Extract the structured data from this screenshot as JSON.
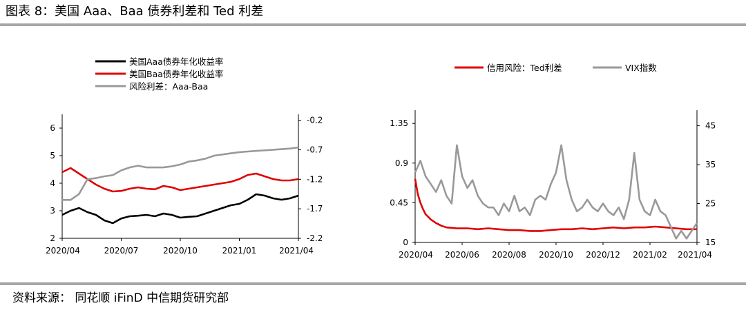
{
  "header": {
    "title": "图表 8：美国 Aaa、Baa 债券利差和 Ted 利差"
  },
  "footer": {
    "source": "资料来源：  同花顺 iFinD 中信期货研究部"
  },
  "chart_data": [
    {
      "type": "line",
      "title": "",
      "legend_position": "top",
      "x_tick_labels": [
        "2020/04",
        "2020/07",
        "2020/10",
        "2021/01",
        "2021/04"
      ],
      "y_left": {
        "lim": [
          2,
          6.5
        ],
        "ticks": [
          2,
          3,
          4,
          5,
          6
        ]
      },
      "y_right": {
        "lim": [
          -2.2,
          -0.1
        ],
        "ticks": [
          -0.2,
          -0.7,
          -1.2,
          -1.7,
          -2.2
        ],
        "tick_labels": [
          "-0.2",
          "-0.7",
          "-1.2",
          "-1.7",
          "-2.2"
        ]
      },
      "grid": false,
      "series": [
        {
          "name": "美国Aaa债券年化收益率",
          "axis": "left",
          "color": "#000000",
          "x": [
            0,
            2,
            4,
            6,
            8,
            10,
            12,
            14,
            16,
            18,
            20,
            22,
            24,
            26,
            28,
            30,
            32,
            34,
            36,
            38,
            40,
            42,
            44,
            46,
            48,
            50,
            52,
            54,
            56
          ],
          "values": [
            2.85,
            3.0,
            3.1,
            2.95,
            2.85,
            2.65,
            2.55,
            2.72,
            2.8,
            2.82,
            2.85,
            2.8,
            2.9,
            2.85,
            2.75,
            2.78,
            2.8,
            2.9,
            3.0,
            3.1,
            3.2,
            3.25,
            3.4,
            3.6,
            3.55,
            3.45,
            3.4,
            3.45,
            3.55
          ]
        },
        {
          "name": "美国Baa债券年化收益率",
          "axis": "left",
          "color": "#e00000",
          "x": [
            0,
            2,
            4,
            6,
            8,
            10,
            12,
            14,
            16,
            18,
            20,
            22,
            24,
            26,
            28,
            30,
            32,
            34,
            36,
            38,
            40,
            42,
            44,
            46,
            48,
            50,
            52,
            54,
            56
          ],
          "values": [
            4.4,
            4.55,
            4.35,
            4.15,
            3.95,
            3.8,
            3.7,
            3.72,
            3.8,
            3.85,
            3.8,
            3.78,
            3.9,
            3.85,
            3.75,
            3.8,
            3.85,
            3.9,
            3.95,
            4.0,
            4.05,
            4.15,
            4.3,
            4.35,
            4.25,
            4.15,
            4.1,
            4.1,
            4.15
          ]
        },
        {
          "name": "风险利差：Aaa-Baa",
          "axis": "right",
          "color": "#999999",
          "x": [
            0,
            2,
            4,
            6,
            8,
            10,
            12,
            14,
            16,
            18,
            20,
            22,
            24,
            26,
            28,
            30,
            32,
            34,
            36,
            38,
            40,
            42,
            44,
            46,
            48,
            50,
            52,
            54,
            56
          ],
          "values": [
            -1.55,
            -1.55,
            -1.45,
            -1.2,
            -1.18,
            -1.15,
            -1.13,
            -1.05,
            -1.0,
            -0.97,
            -1.0,
            -1.0,
            -1.0,
            -0.98,
            -0.95,
            -0.9,
            -0.88,
            -0.85,
            -0.8,
            -0.78,
            -0.76,
            -0.74,
            -0.73,
            -0.72,
            -0.71,
            -0.7,
            -0.69,
            -0.68,
            -0.66
          ]
        }
      ]
    },
    {
      "type": "line",
      "title": "",
      "legend_position": "top",
      "x_tick_labels": [
        "2020/04",
        "2020/06",
        "2020/08",
        "2020/10",
        "2020/12",
        "2021/02",
        "2021/04"
      ],
      "y_left": {
        "lim": [
          0,
          1.5
        ],
        "ticks": [
          0,
          0.45,
          0.9,
          1.35
        ],
        "tick_labels": [
          "0",
          "0.45",
          "0.9",
          "1.35"
        ]
      },
      "y_right": {
        "lim": [
          15,
          49
        ],
        "ticks": [
          15,
          25,
          35,
          45
        ]
      },
      "grid": false,
      "series": [
        {
          "name": "信用风险：Ted利差",
          "axis": "left",
          "color": "#e00000",
          "x": [
            0,
            0.5,
            1,
            1.5,
            2,
            3,
            4,
            5,
            6,
            8,
            10,
            12,
            14,
            16,
            18,
            20,
            22,
            24,
            26,
            28,
            30,
            32,
            34,
            36,
            38,
            40,
            42,
            44,
            46,
            48,
            50,
            52,
            54
          ],
          "values": [
            0.72,
            0.55,
            0.45,
            0.38,
            0.32,
            0.26,
            0.22,
            0.19,
            0.17,
            0.16,
            0.16,
            0.15,
            0.16,
            0.15,
            0.14,
            0.14,
            0.13,
            0.13,
            0.14,
            0.15,
            0.15,
            0.16,
            0.15,
            0.16,
            0.17,
            0.16,
            0.17,
            0.17,
            0.18,
            0.17,
            0.16,
            0.15,
            0.15
          ]
        },
        {
          "name": "VIX指数",
          "axis": "right",
          "color": "#999999",
          "x": [
            0,
            1,
            2,
            3,
            4,
            5,
            6,
            7,
            8,
            9,
            10,
            11,
            12,
            13,
            14,
            15,
            16,
            17,
            18,
            19,
            20,
            21,
            22,
            23,
            24,
            25,
            26,
            27,
            28,
            29,
            30,
            31,
            32,
            33,
            34,
            35,
            36,
            37,
            38,
            39,
            40,
            41,
            42,
            43,
            44,
            45,
            46,
            47,
            48,
            49,
            50,
            51,
            52,
            53,
            54
          ],
          "values": [
            33,
            36,
            32,
            30,
            28,
            31,
            27,
            25,
            40,
            32,
            29,
            31,
            27,
            25,
            24,
            24,
            22,
            25,
            23,
            27,
            23,
            24,
            22,
            26,
            27,
            26,
            30,
            33,
            40,
            31,
            26,
            23,
            24,
            26,
            24,
            23,
            25,
            23,
            22,
            24,
            21,
            26,
            38,
            26,
            23,
            22,
            26,
            23,
            22,
            19,
            16,
            18,
            16,
            18,
            20
          ]
        }
      ]
    }
  ]
}
